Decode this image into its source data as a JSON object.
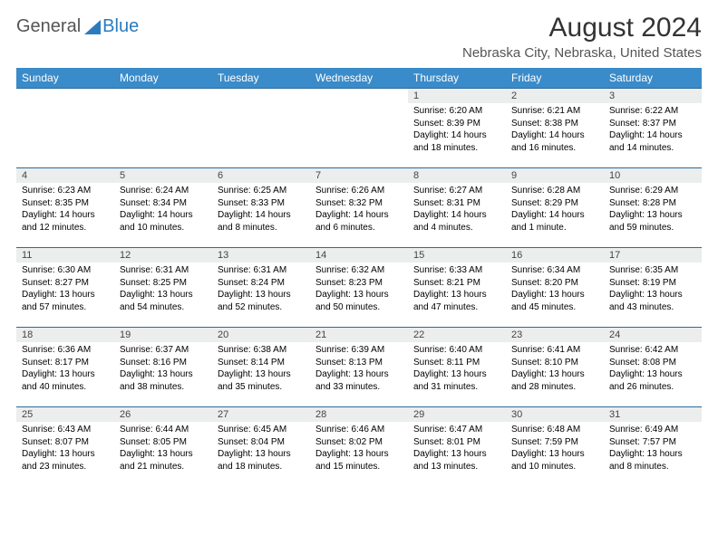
{
  "brand": {
    "part1": "General",
    "part2": "Blue"
  },
  "title": "August 2024",
  "location": "Nebraska City, Nebraska, United States",
  "colors": {
    "header_bg": "#3a8bc9",
    "row_divider": "#2b6a9e",
    "daynum_bg": "#eceded",
    "brand_blue": "#2b7bbd",
    "brand_gray": "#555555"
  },
  "weekdays": [
    "Sunday",
    "Monday",
    "Tuesday",
    "Wednesday",
    "Thursday",
    "Friday",
    "Saturday"
  ],
  "weeks": [
    [
      {
        "blank": true
      },
      {
        "blank": true
      },
      {
        "blank": true
      },
      {
        "blank": true
      },
      {
        "num": "1",
        "sunrise": "6:20 AM",
        "sunset": "8:39 PM",
        "daylight": "14 hours and 18 minutes."
      },
      {
        "num": "2",
        "sunrise": "6:21 AM",
        "sunset": "8:38 PM",
        "daylight": "14 hours and 16 minutes."
      },
      {
        "num": "3",
        "sunrise": "6:22 AM",
        "sunset": "8:37 PM",
        "daylight": "14 hours and 14 minutes."
      }
    ],
    [
      {
        "num": "4",
        "sunrise": "6:23 AM",
        "sunset": "8:35 PM",
        "daylight": "14 hours and 12 minutes."
      },
      {
        "num": "5",
        "sunrise": "6:24 AM",
        "sunset": "8:34 PM",
        "daylight": "14 hours and 10 minutes."
      },
      {
        "num": "6",
        "sunrise": "6:25 AM",
        "sunset": "8:33 PM",
        "daylight": "14 hours and 8 minutes."
      },
      {
        "num": "7",
        "sunrise": "6:26 AM",
        "sunset": "8:32 PM",
        "daylight": "14 hours and 6 minutes."
      },
      {
        "num": "8",
        "sunrise": "6:27 AM",
        "sunset": "8:31 PM",
        "daylight": "14 hours and 4 minutes."
      },
      {
        "num": "9",
        "sunrise": "6:28 AM",
        "sunset": "8:29 PM",
        "daylight": "14 hours and 1 minute."
      },
      {
        "num": "10",
        "sunrise": "6:29 AM",
        "sunset": "8:28 PM",
        "daylight": "13 hours and 59 minutes."
      }
    ],
    [
      {
        "num": "11",
        "sunrise": "6:30 AM",
        "sunset": "8:27 PM",
        "daylight": "13 hours and 57 minutes."
      },
      {
        "num": "12",
        "sunrise": "6:31 AM",
        "sunset": "8:25 PM",
        "daylight": "13 hours and 54 minutes."
      },
      {
        "num": "13",
        "sunrise": "6:31 AM",
        "sunset": "8:24 PM",
        "daylight": "13 hours and 52 minutes."
      },
      {
        "num": "14",
        "sunrise": "6:32 AM",
        "sunset": "8:23 PM",
        "daylight": "13 hours and 50 minutes."
      },
      {
        "num": "15",
        "sunrise": "6:33 AM",
        "sunset": "8:21 PM",
        "daylight": "13 hours and 47 minutes."
      },
      {
        "num": "16",
        "sunrise": "6:34 AM",
        "sunset": "8:20 PM",
        "daylight": "13 hours and 45 minutes."
      },
      {
        "num": "17",
        "sunrise": "6:35 AM",
        "sunset": "8:19 PM",
        "daylight": "13 hours and 43 minutes."
      }
    ],
    [
      {
        "num": "18",
        "sunrise": "6:36 AM",
        "sunset": "8:17 PM",
        "daylight": "13 hours and 40 minutes."
      },
      {
        "num": "19",
        "sunrise": "6:37 AM",
        "sunset": "8:16 PM",
        "daylight": "13 hours and 38 minutes."
      },
      {
        "num": "20",
        "sunrise": "6:38 AM",
        "sunset": "8:14 PM",
        "daylight": "13 hours and 35 minutes."
      },
      {
        "num": "21",
        "sunrise": "6:39 AM",
        "sunset": "8:13 PM",
        "daylight": "13 hours and 33 minutes."
      },
      {
        "num": "22",
        "sunrise": "6:40 AM",
        "sunset": "8:11 PM",
        "daylight": "13 hours and 31 minutes."
      },
      {
        "num": "23",
        "sunrise": "6:41 AM",
        "sunset": "8:10 PM",
        "daylight": "13 hours and 28 minutes."
      },
      {
        "num": "24",
        "sunrise": "6:42 AM",
        "sunset": "8:08 PM",
        "daylight": "13 hours and 26 minutes."
      }
    ],
    [
      {
        "num": "25",
        "sunrise": "6:43 AM",
        "sunset": "8:07 PM",
        "daylight": "13 hours and 23 minutes."
      },
      {
        "num": "26",
        "sunrise": "6:44 AM",
        "sunset": "8:05 PM",
        "daylight": "13 hours and 21 minutes."
      },
      {
        "num": "27",
        "sunrise": "6:45 AM",
        "sunset": "8:04 PM",
        "daylight": "13 hours and 18 minutes."
      },
      {
        "num": "28",
        "sunrise": "6:46 AM",
        "sunset": "8:02 PM",
        "daylight": "13 hours and 15 minutes."
      },
      {
        "num": "29",
        "sunrise": "6:47 AM",
        "sunset": "8:01 PM",
        "daylight": "13 hours and 13 minutes."
      },
      {
        "num": "30",
        "sunrise": "6:48 AM",
        "sunset": "7:59 PM",
        "daylight": "13 hours and 10 minutes."
      },
      {
        "num": "31",
        "sunrise": "6:49 AM",
        "sunset": "7:57 PM",
        "daylight": "13 hours and 8 minutes."
      }
    ]
  ],
  "labels": {
    "sunrise": "Sunrise:",
    "sunset": "Sunset:",
    "daylight": "Daylight:"
  }
}
